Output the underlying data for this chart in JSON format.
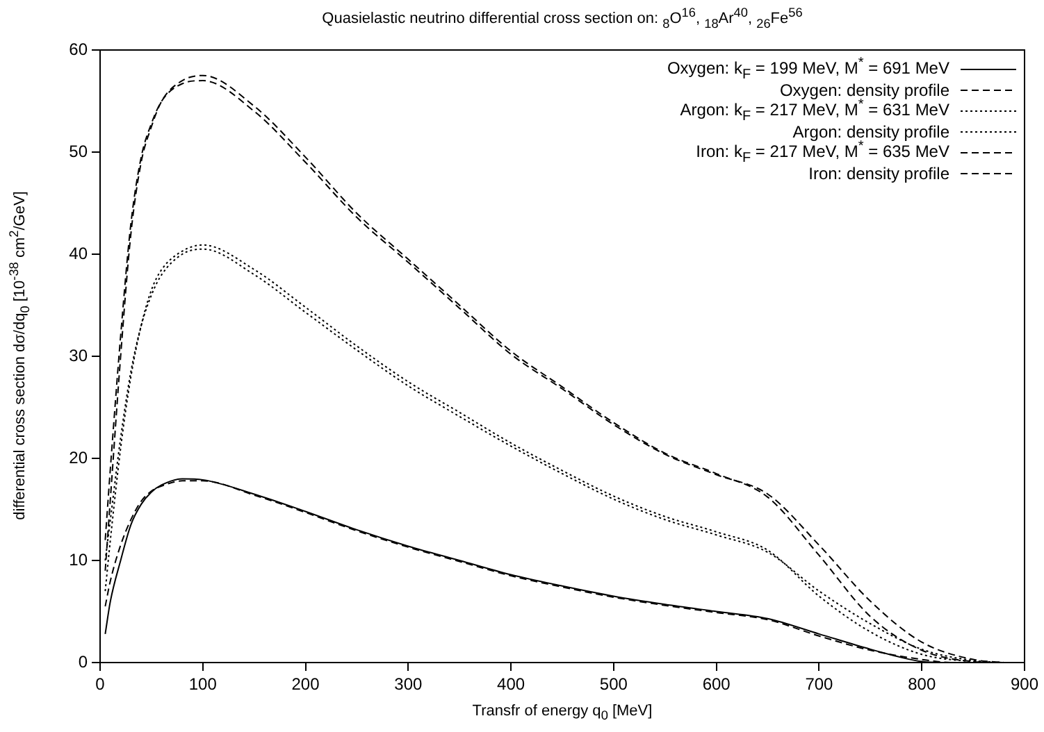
{
  "chart_data": {
    "type": "line",
    "title": "Quasielastic neutrino differential cross section on: $_{8}$O$^{16}$, $_{18}$Ar$^{40}$, $_{26}$Fe$^{56}$",
    "xlabel": "Transfr of energy q$_{0}$ [MeV]",
    "ylabel": "differential cross section dσ/dq$_{0}$ [10$^{-38}$ cm$^{2}$/GeV]",
    "xlim": [
      0,
      900
    ],
    "xticks": [
      0,
      100,
      200,
      300,
      400,
      500,
      600,
      700,
      800,
      900
    ],
    "ylim": [
      0,
      60
    ],
    "yticks": [
      0,
      10,
      20,
      30,
      40,
      50,
      60
    ],
    "grid": false,
    "legend": "top right",
    "marker": "none",
    "series": [
      {
        "name": "Oxygen: k$_{F}$ = 199 MeV, M$^{*}$ = 691 MeV",
        "color": "#000000",
        "line_style": "solid",
        "x": [
          5,
          10,
          20,
          30,
          40,
          50,
          60,
          80,
          100,
          150,
          200,
          250,
          300,
          350,
          400,
          450,
          500,
          550,
          600,
          650,
          700,
          750,
          780,
          800,
          820,
          850
        ],
        "values": [
          2.8,
          6,
          10,
          13.5,
          15.5,
          16.7,
          17.4,
          18,
          17.9,
          16.5,
          14.8,
          13,
          11.4,
          10,
          8.6,
          7.5,
          6.5,
          5.7,
          5,
          4.3,
          2.8,
          1.3,
          0.5,
          0.1,
          0,
          0
        ]
      },
      {
        "name": "Oxygen: density profile",
        "color": "#000000",
        "line_style": "dashed",
        "x": [
          5,
          10,
          20,
          30,
          40,
          50,
          60,
          80,
          100,
          150,
          200,
          250,
          300,
          350,
          400,
          450,
          500,
          550,
          600,
          650,
          700,
          750,
          800,
          830,
          850
        ],
        "values": [
          5.5,
          8,
          11.5,
          14,
          15.8,
          16.8,
          17.3,
          17.8,
          17.8,
          16.4,
          14.7,
          12.9,
          11.3,
          9.9,
          8.5,
          7.4,
          6.4,
          5.6,
          4.9,
          4.2,
          2.6,
          1.2,
          0.3,
          0,
          0
        ]
      },
      {
        "name": "Argon: k$_{F}$ = 217 MeV, M$^{*}$ = 631 MeV",
        "color": "#000000",
        "line_style": "dotted",
        "x": [
          5,
          10,
          20,
          30,
          40,
          50,
          60,
          80,
          100,
          150,
          200,
          250,
          300,
          350,
          400,
          450,
          500,
          550,
          600,
          650,
          700,
          750,
          800,
          850,
          880
        ],
        "values": [
          7,
          12,
          21,
          28,
          33,
          36.5,
          38.5,
          40.3,
          40.9,
          38.5,
          34.8,
          31,
          27.5,
          24.5,
          21.5,
          18.8,
          16.3,
          14.3,
          12.8,
          11,
          6.5,
          3,
          0.8,
          0.1,
          0
        ]
      },
      {
        "name": "Argon: density profile",
        "color": "#000000",
        "line_style": "dotted",
        "x": [
          5,
          10,
          20,
          30,
          40,
          50,
          60,
          80,
          100,
          150,
          200,
          250,
          300,
          350,
          400,
          450,
          500,
          550,
          600,
          650,
          700,
          750,
          800,
          850,
          880
        ],
        "values": [
          10,
          14,
          22,
          28.5,
          33,
          36,
          38,
          40,
          40.5,
          38,
          34.3,
          30.6,
          27.1,
          24.1,
          21.2,
          18.5,
          16,
          14,
          12.5,
          10.8,
          7,
          3.8,
          1.3,
          0.2,
          0
        ]
      },
      {
        "name": "Iron: k$_{F}$ = 217 MeV, M$^{*}$ = 635 MeV",
        "color": "#000000",
        "line_style": "dashed",
        "x": [
          5,
          10,
          20,
          30,
          40,
          50,
          60,
          80,
          100,
          150,
          200,
          250,
          300,
          350,
          400,
          450,
          500,
          550,
          600,
          650,
          700,
          750,
          800,
          850,
          880
        ],
        "values": [
          9,
          16,
          30,
          42,
          49,
          52.5,
          55,
          57,
          57.5,
          54.5,
          49.5,
          44,
          39.5,
          35,
          30.5,
          27,
          23.5,
          20.5,
          18.5,
          16.2,
          10.5,
          4.5,
          1.2,
          0.1,
          0
        ]
      },
      {
        "name": "Iron: density profile",
        "color": "#000000",
        "line_style": "dashed",
        "x": [
          5,
          10,
          20,
          30,
          40,
          50,
          60,
          80,
          100,
          150,
          200,
          250,
          300,
          350,
          400,
          450,
          500,
          550,
          600,
          650,
          700,
          750,
          800,
          850,
          880
        ],
        "values": [
          12,
          19,
          32,
          43,
          49.5,
          52.8,
          55,
          56.7,
          57,
          54,
          49,
          43.6,
          39.2,
          34.7,
          30.2,
          26.8,
          23.3,
          20.4,
          18.4,
          16.5,
          11.5,
          6,
          2,
          0.3,
          0
        ]
      }
    ]
  }
}
